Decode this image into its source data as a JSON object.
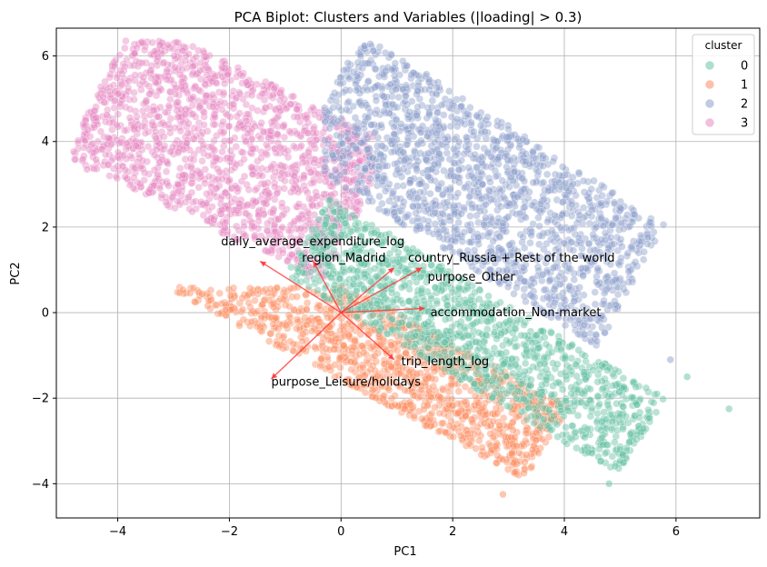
{
  "chart_data": {
    "type": "scatter",
    "title": "PCA Biplot: Clusters and Variables (|loading| > 0.3)",
    "xlabel": "PC1",
    "ylabel": "PC2",
    "xlim": [
      -5.1,
      7.5
    ],
    "ylim": [
      -4.8,
      6.65
    ],
    "xticks": [
      -4,
      -2,
      0,
      2,
      4,
      6
    ],
    "yticks": [
      -4,
      -2,
      0,
      2,
      4,
      6
    ],
    "grid": true,
    "legend": {
      "title": "cluster",
      "placement": "top-right",
      "entries": [
        {
          "label": "0",
          "color": "#66c2a5"
        },
        {
          "label": "1",
          "color": "#fc8d62"
        },
        {
          "label": "2",
          "color": "#8da0cb"
        },
        {
          "label": "3",
          "color": "#e78ac3"
        }
      ]
    },
    "series": [
      {
        "name": "0",
        "color": "#66c2a5",
        "description": "band along lower-right diagonal"
      },
      {
        "name": "1",
        "color": "#fc8d62"
      },
      {
        "name": "2",
        "color": "#8da0cb"
      },
      {
        "name": "3",
        "color": "#e78ac3"
      }
    ],
    "loadings": [
      {
        "label": "daily_average_expenditure_log",
        "x": -1.45,
        "y": 1.2
      },
      {
        "label": "region_Madrid",
        "x": -0.5,
        "y": 1.2
      },
      {
        "label": "country_Russia + Rest of the world",
        "x": 1.45,
        "y": 1.05
      },
      {
        "label": "purpose_Other",
        "x": 0.95,
        "y": 1.05
      },
      {
        "label": "accommodation_Non-market",
        "x": 1.5,
        "y": 0.1
      },
      {
        "label": "trip_length_log",
        "x": 0.95,
        "y": -1.1
      },
      {
        "label": "purpose_Leisure/holidays",
        "x": -1.25,
        "y": -1.55
      }
    ],
    "arrow_color": "#ff3333"
  }
}
